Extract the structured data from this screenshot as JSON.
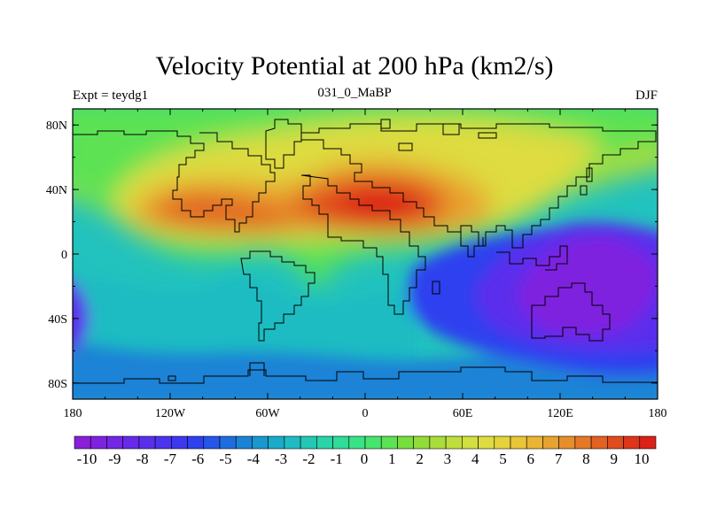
{
  "title": "Velocity Potential at 200 hPa (km2/s)",
  "subtitle_left": "Expt = teydg1",
  "subtitle_center": "031_0_MaBP",
  "subtitle_right": "DJF",
  "x_ticks": [
    "180",
    "120W",
    "60W",
    "0",
    "60E",
    "120E",
    "180"
  ],
  "y_ticks": [
    "80N",
    "40N",
    "0",
    "40S",
    "80S"
  ],
  "colorbar": {
    "labels": [
      "-10",
      "-9",
      "-8",
      "-7",
      "-6",
      "-5",
      "-4",
      "-3",
      "-2",
      "-1",
      "0",
      "1",
      "2",
      "3",
      "4",
      "5",
      "6",
      "7",
      "8",
      "9",
      "10"
    ],
    "colors": [
      "#8a1fd8",
      "#7f22e0",
      "#7326e6",
      "#672aea",
      "#5a2fec",
      "#4c33ef",
      "#3d38f0",
      "#2f40ef",
      "#2556e8",
      "#1e6ddf",
      "#1a83d6",
      "#1898cf",
      "#19abc9",
      "#1ebcc2",
      "#22c8b6",
      "#28d4a8",
      "#2fdc98",
      "#38e385",
      "#46e56e",
      "#5ce252",
      "#78de3c",
      "#92dc38",
      "#aadd3a",
      "#bfde3d",
      "#d1df40",
      "#dedc40",
      "#e6d23c",
      "#e9c538",
      "#eab534",
      "#e8a22f",
      "#e68e2b",
      "#e47826",
      "#e26222",
      "#e04c1e",
      "#de361b",
      "#dc2118"
    ]
  },
  "field": {
    "background_color": "#22c2be",
    "regions": [
      {
        "name": "northern-band",
        "color": "#aadd3a"
      },
      {
        "name": "nh-yellow",
        "color": "#dedc40"
      },
      {
        "name": "nh-orange",
        "color": "#e8a22f"
      },
      {
        "name": "americas-max",
        "color": "#e26222"
      },
      {
        "name": "africa-max",
        "color": "#e04c1e"
      },
      {
        "name": "africa-core",
        "color": "#dc2118"
      },
      {
        "name": "pacific-green",
        "color": "#5ce252"
      },
      {
        "name": "tropical-cyan",
        "color": "#1ebcc2"
      },
      {
        "name": "south-blue",
        "color": "#1a83d6"
      },
      {
        "name": "indian-blue",
        "color": "#2f40ef"
      },
      {
        "name": "maritime-min",
        "color": "#5a2fec"
      },
      {
        "name": "maritime-core",
        "color": "#7f22e0"
      },
      {
        "name": "dateline-min",
        "color": "#5a2fec"
      }
    ]
  }
}
